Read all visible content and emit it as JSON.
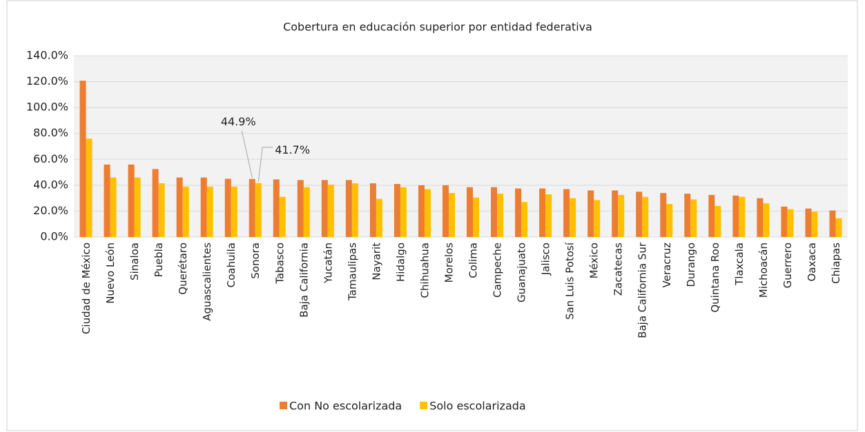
{
  "chart_data": {
    "type": "bar",
    "title": "Cobertura en educación superior por entidad federativa",
    "categories": [
      "Ciudad de México",
      "Nuevo León",
      "Sinaloa",
      "Puebla",
      "Querétaro",
      "Aguascalientes",
      "Coahuila",
      "Sonora",
      "Tabasco",
      "Baja California",
      "Yucatán",
      "Tamaulipas",
      "Nayarit",
      "Hidalgo",
      "Chihuahua",
      "Morelos",
      "Colima",
      "Campeche",
      "Guanajuato",
      "Jalisco",
      "San Luis Potosí",
      "México",
      "Zacatecas",
      "Baja California Sur",
      "Veracruz",
      "Durango",
      "Quintana Roo",
      "Tlaxcala",
      "Michoacán",
      "Guerrero",
      "Oaxaca",
      "Chiapas"
    ],
    "series": [
      {
        "name": "Con No escolarizada",
        "color": "#ed7d31",
        "values": [
          120.8,
          56,
          56,
          52.5,
          46,
          46,
          45,
          44.9,
          44.5,
          44,
          44,
          44,
          41.5,
          41,
          40,
          40,
          38.5,
          38.5,
          37.5,
          37.5,
          37,
          36,
          36,
          35,
          34,
          33.5,
          32.5,
          32,
          30,
          23.5,
          22,
          20.5
        ],
        "value_labels": [
          null,
          null,
          null,
          null,
          null,
          null,
          null,
          "44.9%",
          null,
          null,
          null,
          null,
          null,
          null,
          null,
          null,
          null,
          null,
          null,
          null,
          null,
          null,
          null,
          null,
          null,
          null,
          null,
          null,
          null,
          null,
          null,
          null
        ]
      },
      {
        "name": "Solo escolarizada",
        "color": "#ffc000",
        "values": [
          76,
          46,
          46,
          41.5,
          39,
          39,
          39,
          41.7,
          31,
          38.5,
          40.5,
          41.5,
          29.5,
          38.5,
          37,
          34,
          30.5,
          33.5,
          27,
          33,
          30,
          28.5,
          32.5,
          31,
          25.5,
          29,
          24,
          31,
          26,
          21.5,
          19.5,
          14.5
        ],
        "value_labels": [
          null,
          null,
          null,
          null,
          null,
          null,
          null,
          "41.7%",
          null,
          null,
          null,
          null,
          null,
          null,
          null,
          null,
          null,
          null,
          null,
          null,
          null,
          null,
          null,
          null,
          null,
          null,
          null,
          null,
          null,
          null,
          null,
          null
        ]
      }
    ],
    "ylim": [
      0,
      140
    ],
    "yticks": [
      {
        "value": 0,
        "label": "0.0%"
      },
      {
        "value": 20,
        "label": "20.0%"
      },
      {
        "value": 40,
        "label": "40.0%"
      },
      {
        "value": 60,
        "label": "60.0%"
      },
      {
        "value": 80,
        "label": "80.0%"
      },
      {
        "value": 100,
        "label": "100.0%"
      },
      {
        "value": 120,
        "label": "120.0%"
      },
      {
        "value": 140,
        "label": "140.0%"
      }
    ],
    "grid": true,
    "legend": "bottom"
  }
}
